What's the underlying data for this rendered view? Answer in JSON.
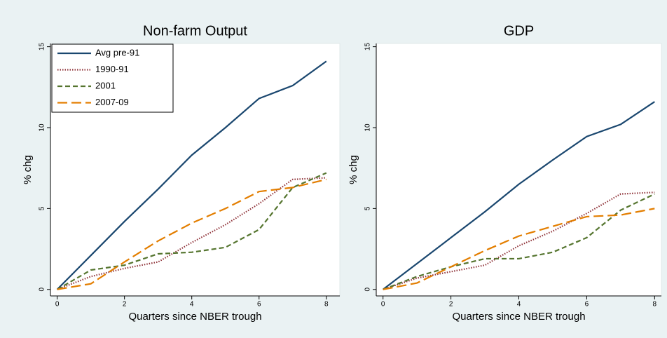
{
  "chart_data": [
    {
      "type": "line",
      "title": "Non-farm Output",
      "x_label": "Quarters since NBER trough",
      "y_label": "% chg",
      "x": [
        0,
        1,
        2,
        3,
        4,
        5,
        6,
        7,
        8
      ],
      "series": [
        {
          "name": "Avg pre-91",
          "color": "#1a476f",
          "dash": "solid",
          "values": [
            0,
            2.1,
            4.2,
            6.2,
            8.3,
            10.0,
            11.8,
            12.6,
            14.1
          ]
        },
        {
          "name": "1990-91",
          "color": "#90353b",
          "dash": "dot",
          "values": [
            0,
            0.8,
            1.3,
            1.7,
            2.9,
            4.0,
            5.3,
            6.8,
            6.9
          ]
        },
        {
          "name": "2001",
          "color": "#55752f",
          "dash": "dash",
          "values": [
            0,
            1.2,
            1.5,
            2.2,
            2.3,
            2.6,
            3.7,
            6.3,
            7.2
          ]
        },
        {
          "name": "2007-09",
          "color": "#e37e00",
          "dash": "longdash",
          "values": [
            0,
            0.35,
            1.7,
            3.0,
            4.1,
            5.0,
            6.05,
            6.3,
            6.8
          ]
        }
      ],
      "xlim": [
        -0.2,
        8.4
      ],
      "xticks": [
        0,
        2,
        4,
        6,
        8
      ],
      "ylim": [
        -0.4,
        15.2
      ],
      "yticks": [
        0,
        5,
        10,
        15
      ],
      "legend": "top-left"
    },
    {
      "type": "line",
      "title": "GDP",
      "x_label": "Quarters since NBER trough",
      "y_label": "% chg",
      "x": [
        0,
        1,
        2,
        3,
        4,
        5,
        6,
        7,
        8
      ],
      "series": [
        {
          "color": "#1a476f",
          "dash": "solid",
          "values": [
            0,
            1.6,
            3.2,
            4.8,
            6.5,
            8.0,
            9.45,
            10.2,
            11.6
          ]
        },
        {
          "color": "#90353b",
          "dash": "dot",
          "values": [
            0,
            0.7,
            1.1,
            1.5,
            2.7,
            3.6,
            4.7,
            5.9,
            6.0
          ]
        },
        {
          "color": "#55752f",
          "dash": "dash",
          "values": [
            0,
            0.8,
            1.4,
            1.9,
            1.9,
            2.3,
            3.2,
            4.9,
            5.9
          ]
        },
        {
          "color": "#e37e00",
          "dash": "longdash",
          "values": [
            0,
            0.4,
            1.4,
            2.4,
            3.3,
            3.9,
            4.5,
            4.6,
            5.0
          ]
        }
      ],
      "xlim": [
        -0.2,
        8.2
      ],
      "xticks": [
        0,
        2,
        4,
        6,
        8
      ],
      "ylim": [
        -0.4,
        15.2
      ],
      "yticks": [
        0,
        5,
        10,
        15
      ]
    }
  ]
}
